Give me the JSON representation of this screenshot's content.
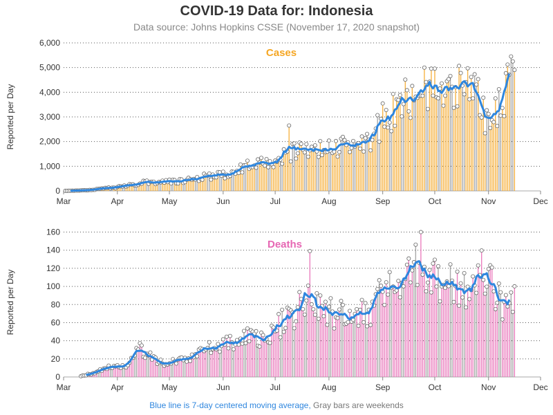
{
  "title": "COVID-19 Data for: Indonesia",
  "subtitle": "Data source: Johns Hopkins CSSE (November 17, 2020 snapshot)",
  "footer": {
    "blue_text": "Blue line is 7-day centered moving average,",
    "gray_text": "Gray bars are weekends"
  },
  "colors": {
    "cases": "#f5a623",
    "deaths": "#e667b3",
    "average": "#2e86de",
    "weekend": "#999999",
    "grid": "#555555"
  },
  "chart_data": [
    {
      "type": "bar",
      "title": "Cases",
      "ylabel": "Reported per Day",
      "x_ticks": [
        "Mar",
        "Apr",
        "May",
        "Jun",
        "Jul",
        "Aug",
        "Sep",
        "Oct",
        "Nov",
        "Dec"
      ],
      "y_ticks": [
        "0",
        "1,000",
        "2,000",
        "3,000",
        "4,000",
        "5,000",
        "6,000"
      ],
      "ylim": [
        0,
        6000
      ],
      "x_range": [
        "2020-03-01",
        "2020-12-01"
      ],
      "grid": true,
      "first_date": "2020-03-02",
      "last_date": "2020-11-16",
      "anchors": [
        [
          "2020-03-02",
          2
        ],
        [
          "2020-03-15",
          25
        ],
        [
          "2020-03-25",
          100
        ],
        [
          "2020-04-05",
          180
        ],
        [
          "2020-04-15",
          330
        ],
        [
          "2020-04-25",
          350
        ],
        [
          "2020-05-05",
          380
        ],
        [
          "2020-05-15",
          500
        ],
        [
          "2020-05-25",
          600
        ],
        [
          "2020-06-05",
          650
        ],
        [
          "2020-06-15",
          1000
        ],
        [
          "2020-06-25",
          1100
        ],
        [
          "2020-07-05",
          1400
        ],
        [
          "2020-07-15",
          1650
        ],
        [
          "2020-07-25",
          1600
        ],
        [
          "2020-08-05",
          1750
        ],
        [
          "2020-08-15",
          2000
        ],
        [
          "2020-08-25",
          2050
        ],
        [
          "2020-09-01",
          2900
        ],
        [
          "2020-09-10",
          3450
        ],
        [
          "2020-09-20",
          4000
        ],
        [
          "2020-09-28",
          4300
        ],
        [
          "2020-10-05",
          4300
        ],
        [
          "2020-10-12",
          4100
        ],
        [
          "2020-10-20",
          4100
        ],
        [
          "2020-10-25",
          3900
        ],
        [
          "2020-11-01",
          2700
        ],
        [
          "2020-11-08",
          3800
        ],
        [
          "2020-11-13",
          4250
        ],
        [
          "2020-11-16",
          4100
        ]
      ]
    },
    {
      "type": "bar",
      "title": "Deaths",
      "ylabel": "Reported per Day",
      "x_ticks": [
        "Mar",
        "Apr",
        "May",
        "Jun",
        "Jul",
        "Aug",
        "Sep",
        "Oct",
        "Nov",
        "Dec"
      ],
      "y_ticks": [
        "0",
        "20",
        "40",
        "60",
        "80",
        "100",
        "120",
        "140",
        "160"
      ],
      "ylim": [
        0,
        165
      ],
      "x_range": [
        "2020-03-01",
        "2020-12-01"
      ],
      "grid": true,
      "first_date": "2020-03-11",
      "last_date": "2020-11-16",
      "anchors": [
        [
          "2020-03-11",
          1
        ],
        [
          "2020-03-20",
          5
        ],
        [
          "2020-03-28",
          12
        ],
        [
          "2020-04-05",
          11
        ],
        [
          "2020-04-12",
          32
        ],
        [
          "2020-04-20",
          25
        ],
        [
          "2020-04-28",
          12
        ],
        [
          "2020-05-05",
          19
        ],
        [
          "2020-05-15",
          20
        ],
        [
          "2020-05-20",
          32
        ],
        [
          "2020-05-28",
          30
        ],
        [
          "2020-06-05",
          38
        ],
        [
          "2020-06-15",
          45
        ],
        [
          "2020-06-25",
          42
        ],
        [
          "2020-07-05",
          60
        ],
        [
          "2020-07-12",
          65
        ],
        [
          "2020-07-20",
          100
        ],
        [
          "2020-07-25",
          85
        ],
        [
          "2020-08-01",
          70
        ],
        [
          "2020-08-15",
          68
        ],
        [
          "2020-08-25",
          75
        ],
        [
          "2020-09-01",
          93
        ],
        [
          "2020-09-10",
          98
        ],
        [
          "2020-09-15",
          107
        ],
        [
          "2020-09-22",
          125
        ],
        [
          "2020-09-25",
          120
        ],
        [
          "2020-10-01",
          107
        ],
        [
          "2020-10-10",
          100
        ],
        [
          "2020-10-15",
          92
        ],
        [
          "2020-10-22",
          98
        ],
        [
          "2020-10-28",
          112
        ],
        [
          "2020-11-05",
          92
        ],
        [
          "2020-11-10",
          82
        ],
        [
          "2020-11-16",
          90
        ]
      ]
    }
  ]
}
